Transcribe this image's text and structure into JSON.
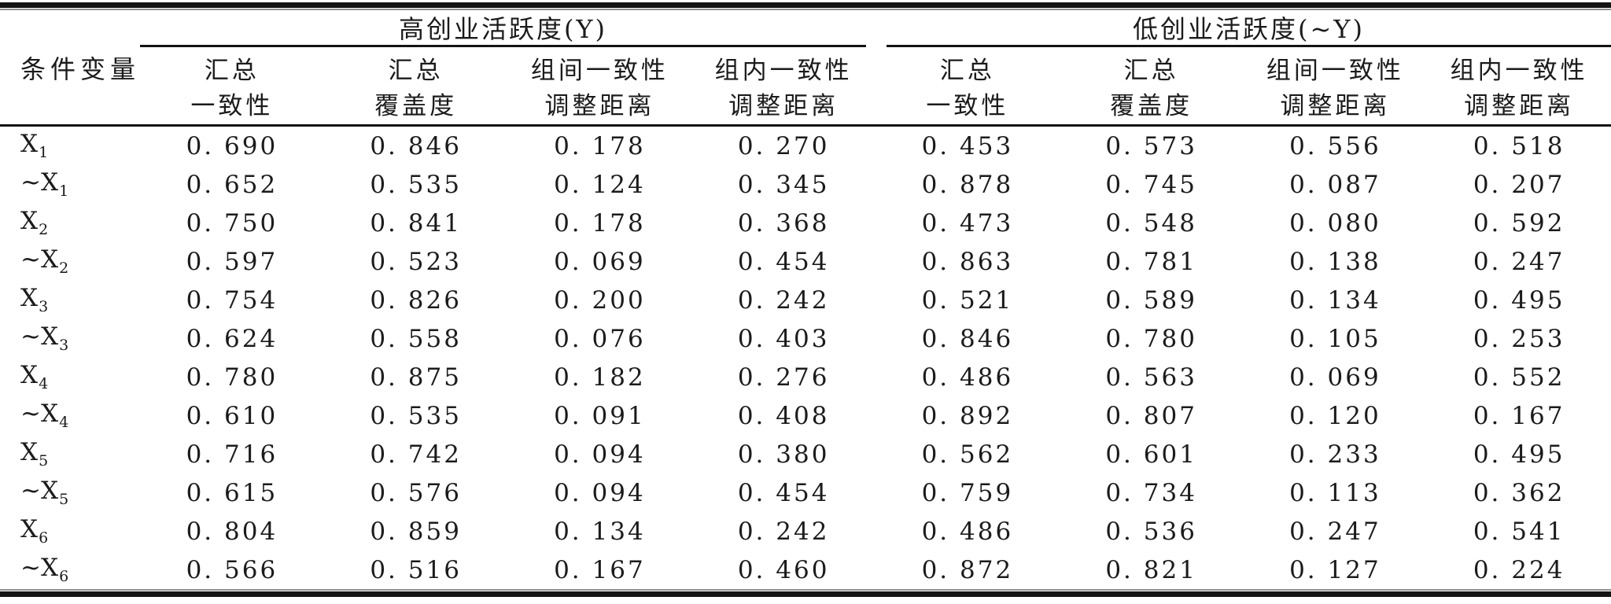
{
  "table": {
    "condition_variable_header": "条件变量",
    "groups": [
      {
        "title": "高创业活跃度(Y)"
      },
      {
        "title": "低创业活跃度(~Y)"
      }
    ],
    "subheaders": [
      {
        "line1": "汇总",
        "line2": "一致性"
      },
      {
        "line1": "汇总",
        "line2": "覆盖度"
      },
      {
        "line1": "组间一致性",
        "line2": "调整距离"
      },
      {
        "line1": "组内一致性",
        "line2": "调整距离"
      },
      {
        "line1": "汇总",
        "line2": "一致性"
      },
      {
        "line1": "汇总",
        "line2": "覆盖度"
      },
      {
        "line1": "组间一致性",
        "line2": "调整距离"
      },
      {
        "line1": "组内一致性",
        "line2": "调整距离"
      }
    ],
    "rows": [
      {
        "prefix": "",
        "base": "X",
        "sub": "1",
        "values": [
          "0. 690",
          "0. 846",
          "0. 178",
          "0. 270",
          "0. 453",
          "0. 573",
          "0. 556",
          "0. 518"
        ]
      },
      {
        "prefix": "~",
        "base": "X",
        "sub": "1",
        "values": [
          "0. 652",
          "0. 535",
          "0. 124",
          "0. 345",
          "0. 878",
          "0. 745",
          "0. 087",
          "0. 207"
        ]
      },
      {
        "prefix": "",
        "base": "X",
        "sub": "2",
        "values": [
          "0. 750",
          "0. 841",
          "0. 178",
          "0. 368",
          "0. 473",
          "0. 548",
          "0. 080",
          "0. 592"
        ]
      },
      {
        "prefix": "~",
        "base": "X",
        "sub": "2",
        "values": [
          "0. 597",
          "0. 523",
          "0. 069",
          "0. 454",
          "0. 863",
          "0. 781",
          "0. 138",
          "0. 247"
        ]
      },
      {
        "prefix": "",
        "base": "X",
        "sub": "3",
        "values": [
          "0. 754",
          "0. 826",
          "0. 200",
          "0. 242",
          "0. 521",
          "0. 589",
          "0. 134",
          "0. 495"
        ]
      },
      {
        "prefix": "~",
        "base": "X",
        "sub": "3",
        "values": [
          "0. 624",
          "0. 558",
          "0. 076",
          "0. 403",
          "0. 846",
          "0. 780",
          "0. 105",
          "0. 253"
        ]
      },
      {
        "prefix": "",
        "base": "X",
        "sub": "4",
        "values": [
          "0. 780",
          "0. 875",
          "0. 182",
          "0. 276",
          "0. 486",
          "0. 563",
          "0. 069",
          "0. 552"
        ]
      },
      {
        "prefix": "~",
        "base": "X",
        "sub": "4",
        "values": [
          "0. 610",
          "0. 535",
          "0. 091",
          "0. 408",
          "0. 892",
          "0. 807",
          "0. 120",
          "0. 167"
        ]
      },
      {
        "prefix": "",
        "base": "X",
        "sub": "5",
        "values": [
          "0. 716",
          "0. 742",
          "0. 094",
          "0. 380",
          "0. 562",
          "0. 601",
          "0. 233",
          "0. 495"
        ]
      },
      {
        "prefix": "~",
        "base": "X",
        "sub": "5",
        "values": [
          "0. 615",
          "0. 576",
          "0. 094",
          "0. 454",
          "0. 759",
          "0. 734",
          "0. 113",
          "0. 362"
        ]
      },
      {
        "prefix": "",
        "base": "X",
        "sub": "6",
        "values": [
          "0. 804",
          "0. 859",
          "0. 134",
          "0. 242",
          "0. 486",
          "0. 536",
          "0. 247",
          "0. 541"
        ]
      },
      {
        "prefix": "~",
        "base": "X",
        "sub": "6",
        "values": [
          "0. 566",
          "0. 516",
          "0. 167",
          "0. 460",
          "0. 872",
          "0. 821",
          "0. 127",
          "0. 224"
        ]
      }
    ]
  }
}
